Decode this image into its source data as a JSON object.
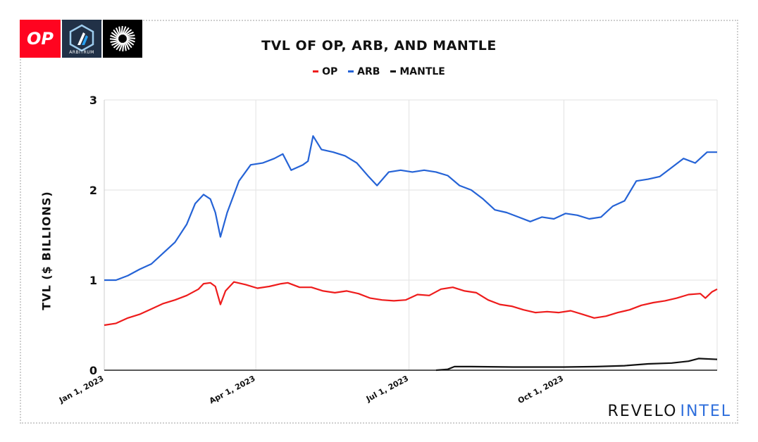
{
  "logos": {
    "op_text": "OP",
    "arbitrum_text": "ARBITRUM"
  },
  "brand": {
    "part1": "REVELO",
    "part2": "INTEL"
  },
  "colors": {
    "op": "#ee1c1c",
    "arb": "#2563d6",
    "mantle": "#111111",
    "grid": "#e2e2e2"
  },
  "chart_data": {
    "type": "line",
    "title": "TVL OF OP, ARB, AND MANTLE",
    "xlabel": "",
    "ylabel": "TVL ($ BILLIONS)",
    "x_axis": "date",
    "xlim": [
      "2023-01-01",
      "2023-12-31"
    ],
    "ylim": [
      0,
      3
    ],
    "yticks": [
      "0",
      "1",
      "2",
      "3"
    ],
    "xticks": [
      {
        "date": "2023-01-01",
        "label": "Jan 1, 2023"
      },
      {
        "date": "2023-04-01",
        "label": "Apr 1, 2023"
      },
      {
        "date": "2023-07-01",
        "label": "Jul 1, 2023"
      },
      {
        "date": "2023-10-01",
        "label": "Oct 1, 2023"
      }
    ],
    "grid": true,
    "legend_position": "top-center",
    "series": [
      {
        "name": "OP",
        "color": "#ee1c1c",
        "points": [
          [
            "2023-01-01",
            0.5
          ],
          [
            "2023-01-08",
            0.52
          ],
          [
            "2023-01-15",
            0.58
          ],
          [
            "2023-01-22",
            0.62
          ],
          [
            "2023-01-29",
            0.68
          ],
          [
            "2023-02-05",
            0.74
          ],
          [
            "2023-02-12",
            0.78
          ],
          [
            "2023-02-19",
            0.83
          ],
          [
            "2023-02-26",
            0.9
          ],
          [
            "2023-03-01",
            0.96
          ],
          [
            "2023-03-05",
            0.97
          ],
          [
            "2023-03-08",
            0.93
          ],
          [
            "2023-03-11",
            0.73
          ],
          [
            "2023-03-14",
            0.88
          ],
          [
            "2023-03-19",
            0.98
          ],
          [
            "2023-03-26",
            0.95
          ],
          [
            "2023-04-02",
            0.91
          ],
          [
            "2023-04-09",
            0.93
          ],
          [
            "2023-04-16",
            0.96
          ],
          [
            "2023-04-20",
            0.97
          ],
          [
            "2023-04-27",
            0.92
          ],
          [
            "2023-05-04",
            0.92
          ],
          [
            "2023-05-11",
            0.88
          ],
          [
            "2023-05-18",
            0.86
          ],
          [
            "2023-05-25",
            0.88
          ],
          [
            "2023-06-01",
            0.85
          ],
          [
            "2023-06-08",
            0.8
          ],
          [
            "2023-06-15",
            0.78
          ],
          [
            "2023-06-22",
            0.77
          ],
          [
            "2023-06-29",
            0.78
          ],
          [
            "2023-07-06",
            0.84
          ],
          [
            "2023-07-13",
            0.83
          ],
          [
            "2023-07-20",
            0.9
          ],
          [
            "2023-07-27",
            0.92
          ],
          [
            "2023-08-03",
            0.88
          ],
          [
            "2023-08-10",
            0.86
          ],
          [
            "2023-08-17",
            0.78
          ],
          [
            "2023-08-24",
            0.73
          ],
          [
            "2023-08-31",
            0.71
          ],
          [
            "2023-09-07",
            0.67
          ],
          [
            "2023-09-14",
            0.64
          ],
          [
            "2023-09-21",
            0.65
          ],
          [
            "2023-09-28",
            0.64
          ],
          [
            "2023-10-05",
            0.66
          ],
          [
            "2023-10-12",
            0.62
          ],
          [
            "2023-10-19",
            0.58
          ],
          [
            "2023-10-26",
            0.6
          ],
          [
            "2023-11-02",
            0.64
          ],
          [
            "2023-11-09",
            0.67
          ],
          [
            "2023-11-16",
            0.72
          ],
          [
            "2023-11-23",
            0.75
          ],
          [
            "2023-11-30",
            0.77
          ],
          [
            "2023-12-07",
            0.8
          ],
          [
            "2023-12-14",
            0.84
          ],
          [
            "2023-12-21",
            0.85
          ],
          [
            "2023-12-24",
            0.8
          ],
          [
            "2023-12-28",
            0.87
          ],
          [
            "2023-12-31",
            0.9
          ]
        ]
      },
      {
        "name": "ARB",
        "color": "#2563d6",
        "points": [
          [
            "2023-01-01",
            1.0
          ],
          [
            "2023-01-08",
            1.0
          ],
          [
            "2023-01-15",
            1.05
          ],
          [
            "2023-01-22",
            1.12
          ],
          [
            "2023-01-29",
            1.18
          ],
          [
            "2023-02-05",
            1.3
          ],
          [
            "2023-02-12",
            1.42
          ],
          [
            "2023-02-19",
            1.62
          ],
          [
            "2023-02-24",
            1.85
          ],
          [
            "2023-03-01",
            1.95
          ],
          [
            "2023-03-05",
            1.9
          ],
          [
            "2023-03-08",
            1.75
          ],
          [
            "2023-03-11",
            1.48
          ],
          [
            "2023-03-15",
            1.75
          ],
          [
            "2023-03-22",
            2.1
          ],
          [
            "2023-03-29",
            2.28
          ],
          [
            "2023-04-05",
            2.3
          ],
          [
            "2023-04-12",
            2.35
          ],
          [
            "2023-04-17",
            2.4
          ],
          [
            "2023-04-22",
            2.22
          ],
          [
            "2023-04-29",
            2.28
          ],
          [
            "2023-05-02",
            2.32
          ],
          [
            "2023-05-05",
            2.6
          ],
          [
            "2023-05-10",
            2.45
          ],
          [
            "2023-05-17",
            2.42
          ],
          [
            "2023-05-24",
            2.38
          ],
          [
            "2023-05-31",
            2.3
          ],
          [
            "2023-06-07",
            2.15
          ],
          [
            "2023-06-12",
            2.05
          ],
          [
            "2023-06-19",
            2.2
          ],
          [
            "2023-06-26",
            2.22
          ],
          [
            "2023-07-03",
            2.2
          ],
          [
            "2023-07-10",
            2.22
          ],
          [
            "2023-07-17",
            2.2
          ],
          [
            "2023-07-24",
            2.16
          ],
          [
            "2023-07-31",
            2.05
          ],
          [
            "2023-08-07",
            2.0
          ],
          [
            "2023-08-14",
            1.9
          ],
          [
            "2023-08-21",
            1.78
          ],
          [
            "2023-08-28",
            1.75
          ],
          [
            "2023-09-04",
            1.7
          ],
          [
            "2023-09-11",
            1.65
          ],
          [
            "2023-09-18",
            1.7
          ],
          [
            "2023-09-25",
            1.68
          ],
          [
            "2023-10-02",
            1.74
          ],
          [
            "2023-10-09",
            1.72
          ],
          [
            "2023-10-16",
            1.68
          ],
          [
            "2023-10-23",
            1.7
          ],
          [
            "2023-10-30",
            1.82
          ],
          [
            "2023-11-06",
            1.88
          ],
          [
            "2023-11-13",
            2.1
          ],
          [
            "2023-11-20",
            2.12
          ],
          [
            "2023-11-27",
            2.15
          ],
          [
            "2023-12-04",
            2.25
          ],
          [
            "2023-12-11",
            2.35
          ],
          [
            "2023-12-18",
            2.3
          ],
          [
            "2023-12-25",
            2.42
          ],
          [
            "2023-12-31",
            2.42
          ]
        ]
      },
      {
        "name": "MANTLE",
        "color": "#111111",
        "points": [
          [
            "2023-07-17",
            0.0
          ],
          [
            "2023-07-24",
            0.01
          ],
          [
            "2023-07-28",
            0.04
          ],
          [
            "2023-08-07",
            0.04
          ],
          [
            "2023-09-01",
            0.035
          ],
          [
            "2023-10-01",
            0.035
          ],
          [
            "2023-10-20",
            0.04
          ],
          [
            "2023-11-06",
            0.05
          ],
          [
            "2023-11-20",
            0.07
          ],
          [
            "2023-12-04",
            0.08
          ],
          [
            "2023-12-14",
            0.1
          ],
          [
            "2023-12-20",
            0.13
          ],
          [
            "2023-12-31",
            0.12
          ]
        ]
      }
    ]
  }
}
